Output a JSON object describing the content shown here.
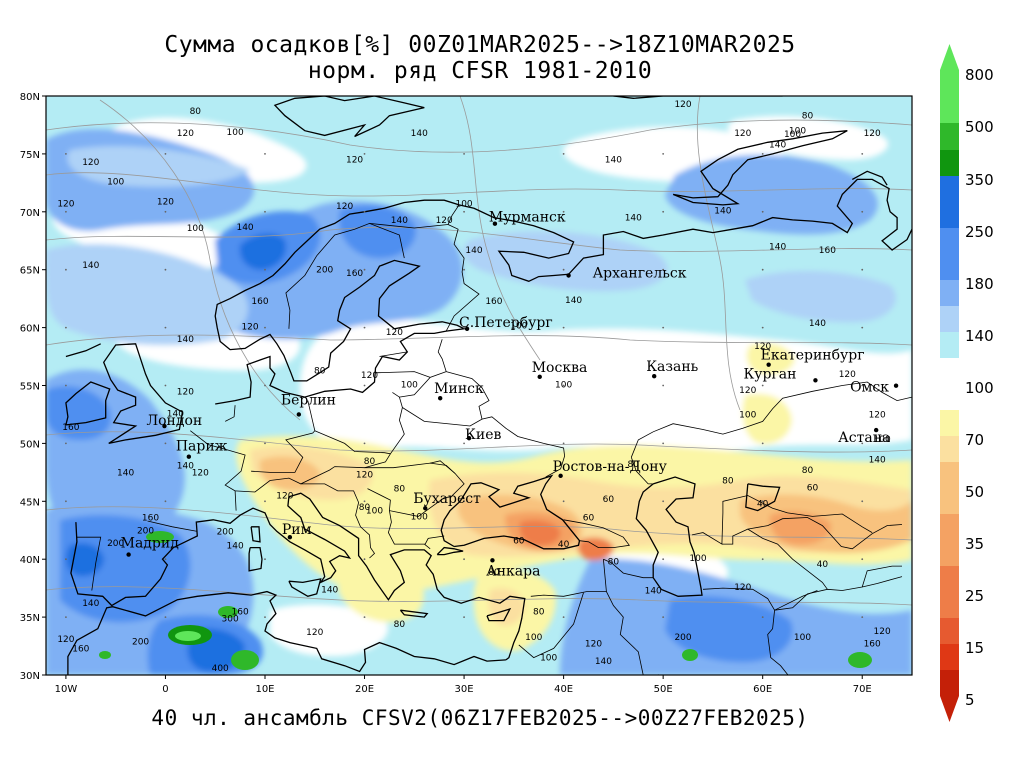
{
  "title": {
    "line1": "Сумма осадков[%] 00Z01MAR2025-->18Z10MAR2025",
    "line2": "норм. ряд CFSR 1981-2010"
  },
  "footer": "40 чл. ансамбль CFSV2(06Z17FEB2025-->00Z27FEB2025)",
  "axes": {
    "lon_labels": [
      "10W",
      "0",
      "10E",
      "20E",
      "30E",
      "40E",
      "50E",
      "60E",
      "70E"
    ],
    "lat_labels": [
      "80N",
      "75N",
      "70N",
      "65N",
      "60N",
      "55N",
      "50N",
      "45N",
      "40N",
      "35N",
      "30N"
    ],
    "lon_range": [
      -12,
      75
    ],
    "lat_range": [
      30,
      80
    ]
  },
  "legend": {
    "labels": [
      "800",
      "500",
      "350",
      "250",
      "180",
      "140",
      "100",
      "70",
      "50",
      "35",
      "25",
      "15",
      "5"
    ],
    "wet_colors": [
      "#5ee65a",
      "#2fb82a",
      "#10960f",
      "#1f6fe0",
      "#4f8ff0",
      "#7fb0f4",
      "#aed2f7",
      "#b4ecf4"
    ],
    "dry_colors": [
      "#fbf6a6",
      "#fbe0a0",
      "#f8c27e",
      "#f4a263",
      "#ee7d48",
      "#e65a30",
      "#df3815",
      "#c42008"
    ]
  },
  "cities": [
    {
      "name": "Мурманск",
      "lon": 33.1,
      "lat": 68.97
    },
    {
      "name": "Архангельск",
      "lon": 40.5,
      "lat": 64.5
    },
    {
      "name": "С.Петербург",
      "lon": 30.3,
      "lat": 59.9
    },
    {
      "name": "Москва",
      "lon": 37.6,
      "lat": 55.75
    },
    {
      "name": "Казань",
      "lon": 49.1,
      "lat": 55.8
    },
    {
      "name": "Екатеринбург",
      "lon": 60.6,
      "lat": 56.8
    },
    {
      "name": "Курган",
      "lon": 65.3,
      "lat": 55.45
    },
    {
      "name": "Омск",
      "lon": 73.4,
      "lat": 54.98
    },
    {
      "name": "Астана",
      "lon": 71.4,
      "lat": 51.15
    },
    {
      "name": "Минск",
      "lon": 27.6,
      "lat": 53.9
    },
    {
      "name": "Берлин",
      "lon": 13.4,
      "lat": 52.5
    },
    {
      "name": "Лондон",
      "lon": -0.1,
      "lat": 51.5
    },
    {
      "name": "Париж",
      "lon": 2.35,
      "lat": 48.85
    },
    {
      "name": "Киев",
      "lon": 30.5,
      "lat": 50.45
    },
    {
      "name": "Ростов-на-Дону",
      "lon": 39.7,
      "lat": 47.2
    },
    {
      "name": "Бухарест",
      "lon": 26.1,
      "lat": 44.4
    },
    {
      "name": "Рим",
      "lon": 12.5,
      "lat": 41.9
    },
    {
      "name": "Мадрид",
      "lon": -3.7,
      "lat": 40.4
    },
    {
      "name": "Анкара",
      "lon": 32.85,
      "lat": 39.9
    }
  ],
  "contour_labels": [
    {
      "t": "80",
      "lon": 3,
      "lat": 78.7
    },
    {
      "t": "120",
      "lon": 2,
      "lat": 76.8
    },
    {
      "t": "100",
      "lon": 7,
      "lat": 76.9
    },
    {
      "t": "120",
      "lon": -7.5,
      "lat": 74.3
    },
    {
      "t": "100",
      "lon": -5,
      "lat": 72.6
    },
    {
      "t": "120",
      "lon": -10,
      "lat": 70.7
    },
    {
      "t": "120",
      "lon": 0,
      "lat": 70.9
    },
    {
      "t": "100",
      "lon": 3,
      "lat": 68.6
    },
    {
      "t": "140",
      "lon": 8,
      "lat": 68.7
    },
    {
      "t": "140",
      "lon": -7.5,
      "lat": 65.4
    },
    {
      "t": "200",
      "lon": 16,
      "lat": 65
    },
    {
      "t": "160",
      "lon": 19,
      "lat": 64.7
    },
    {
      "t": "160",
      "lon": 9.5,
      "lat": 62.3
    },
    {
      "t": "120",
      "lon": 18,
      "lat": 70.5
    },
    {
      "t": "140",
      "lon": 23.5,
      "lat": 69.3
    },
    {
      "t": "120",
      "lon": 28,
      "lat": 69.3
    },
    {
      "t": "100",
      "lon": 30,
      "lat": 70.7
    },
    {
      "t": "140",
      "lon": 25.5,
      "lat": 76.8
    },
    {
      "t": "120",
      "lon": 19,
      "lat": 74.5
    },
    {
      "t": "120",
      "lon": 52,
      "lat": 79.3
    },
    {
      "t": "120",
      "lon": 58,
      "lat": 76.8
    },
    {
      "t": "140",
      "lon": 45,
      "lat": 74.5
    },
    {
      "t": "140",
      "lon": 61.5,
      "lat": 75.8
    },
    {
      "t": "100",
      "lon": 63.5,
      "lat": 77
    },
    {
      "t": "80",
      "lon": 64.5,
      "lat": 78.3
    },
    {
      "t": "100",
      "lon": 63,
      "lat": 76.7
    },
    {
      "t": "120",
      "lon": 71,
      "lat": 76.8
    },
    {
      "t": "140",
      "lon": 47,
      "lat": 69.5
    },
    {
      "t": "140",
      "lon": 56,
      "lat": 70.1
    },
    {
      "t": "140",
      "lon": 61.5,
      "lat": 67
    },
    {
      "t": "160",
      "lon": 66.5,
      "lat": 66.7
    },
    {
      "t": "140",
      "lon": 31,
      "lat": 66.7
    },
    {
      "t": "160",
      "lon": 33,
      "lat": 62.3
    },
    {
      "t": "140",
      "lon": 41,
      "lat": 62.4
    },
    {
      "t": "140",
      "lon": 65.5,
      "lat": 60.4
    },
    {
      "t": "120",
      "lon": 60,
      "lat": 58.4
    },
    {
      "t": "140",
      "lon": 2,
      "lat": 59
    },
    {
      "t": "120",
      "lon": 8.5,
      "lat": 60.1
    },
    {
      "t": "120",
      "lon": 23,
      "lat": 59.6
    },
    {
      "t": "100",
      "lon": 35.5,
      "lat": 60.2
    },
    {
      "t": "120",
      "lon": 20.5,
      "lat": 55.9
    },
    {
      "t": "100",
      "lon": 24.5,
      "lat": 55.1
    },
    {
      "t": "100",
      "lon": 40,
      "lat": 55.1
    },
    {
      "t": "120",
      "lon": 68.5,
      "lat": 56
    },
    {
      "t": "120",
      "lon": 58.5,
      "lat": 54.6
    },
    {
      "t": "100",
      "lon": 58.5,
      "lat": 52.5
    },
    {
      "t": "120",
      "lon": 71.5,
      "lat": 52.5
    },
    {
      "t": "100",
      "lon": 72,
      "lat": 50.4
    },
    {
      "t": "140",
      "lon": 71.5,
      "lat": 48.6
    },
    {
      "t": "80",
      "lon": 64.5,
      "lat": 47.7
    },
    {
      "t": "60",
      "lon": 65,
      "lat": 46.2
    },
    {
      "t": "80",
      "lon": 56.5,
      "lat": 46.8
    },
    {
      "t": "80",
      "lon": 47,
      "lat": 48.2
    },
    {
      "t": "60",
      "lon": 44.5,
      "lat": 45.2
    },
    {
      "t": "80",
      "lon": 23.5,
      "lat": 46.1
    },
    {
      "t": "100",
      "lon": 25.5,
      "lat": 43.7
    },
    {
      "t": "60",
      "lon": 35.5,
      "lat": 41.6
    },
    {
      "t": "40",
      "lon": 40,
      "lat": 41.3
    },
    {
      "t": "100",
      "lon": 53.5,
      "lat": 40.1
    },
    {
      "t": "80",
      "lon": 45,
      "lat": 39.8
    },
    {
      "t": "80",
      "lon": 33,
      "lat": 38.9
    },
    {
      "t": "120",
      "lon": 58,
      "lat": 37.6
    },
    {
      "t": "140",
      "lon": 49,
      "lat": 37.3
    },
    {
      "t": "100",
      "lon": 37,
      "lat": 33.3
    },
    {
      "t": "100",
      "lon": 38.5,
      "lat": 31.5
    },
    {
      "t": "120",
      "lon": 43,
      "lat": 32.7
    },
    {
      "t": "200",
      "lon": 52,
      "lat": 33.3
    },
    {
      "t": "140",
      "lon": 44,
      "lat": 31.2
    },
    {
      "t": "100",
      "lon": 64,
      "lat": 33.3
    },
    {
      "t": "160",
      "lon": 71,
      "lat": 32.7
    },
    {
      "t": "120",
      "lon": 72,
      "lat": 33.8
    },
    {
      "t": "80",
      "lon": 15.5,
      "lat": 56.3
    },
    {
      "t": "120",
      "lon": 2,
      "lat": 54.5
    },
    {
      "t": "140",
      "lon": 1,
      "lat": 52.6
    },
    {
      "t": "160",
      "lon": -9.5,
      "lat": 51.4
    },
    {
      "t": "140",
      "lon": -4,
      "lat": 47.5
    },
    {
      "t": "140",
      "lon": 2,
      "lat": 48.1
    },
    {
      "t": "120",
      "lon": 3.5,
      "lat": 47.5
    },
    {
      "t": "120",
      "lon": 12,
      "lat": 45.5
    },
    {
      "t": "160",
      "lon": -1.5,
      "lat": 43.6
    },
    {
      "t": "200",
      "lon": -2,
      "lat": 42.5
    },
    {
      "t": "200",
      "lon": -5,
      "lat": 41.4
    },
    {
      "t": "200",
      "lon": 6,
      "lat": 42.4
    },
    {
      "t": "140",
      "lon": 7,
      "lat": 41.2
    },
    {
      "t": "140",
      "lon": -7.5,
      "lat": 36.2
    },
    {
      "t": "160",
      "lon": 7.5,
      "lat": 35.5
    },
    {
      "t": "300",
      "lon": 6.5,
      "lat": 34.9
    },
    {
      "t": "200",
      "lon": -2.5,
      "lat": 32.9
    },
    {
      "t": "120",
      "lon": -10,
      "lat": 33.1
    },
    {
      "t": "160",
      "lon": -8.5,
      "lat": 32.3
    },
    {
      "t": "400",
      "lon": 5.5,
      "lat": 30.6
    },
    {
      "t": "120",
      "lon": 15,
      "lat": 33.7
    },
    {
      "t": "140",
      "lon": 16.5,
      "lat": 37.4
    },
    {
      "t": "80",
      "lon": 23.5,
      "lat": 34.4
    },
    {
      "t": "80",
      "lon": 37.5,
      "lat": 35.5
    },
    {
      "t": "80",
      "lon": 20,
      "lat": 44.5
    },
    {
      "t": "100",
      "lon": 21,
      "lat": 44.2
    },
    {
      "t": "120",
      "lon": 20,
      "lat": 47.3
    },
    {
      "t": "80",
      "lon": 20.5,
      "lat": 48.5
    },
    {
      "t": "60",
      "lon": 42.5,
      "lat": 43.6
    },
    {
      "t": "40",
      "lon": 60,
      "lat": 44.8
    },
    {
      "t": "40",
      "lon": 66,
      "lat": 39.6
    }
  ]
}
